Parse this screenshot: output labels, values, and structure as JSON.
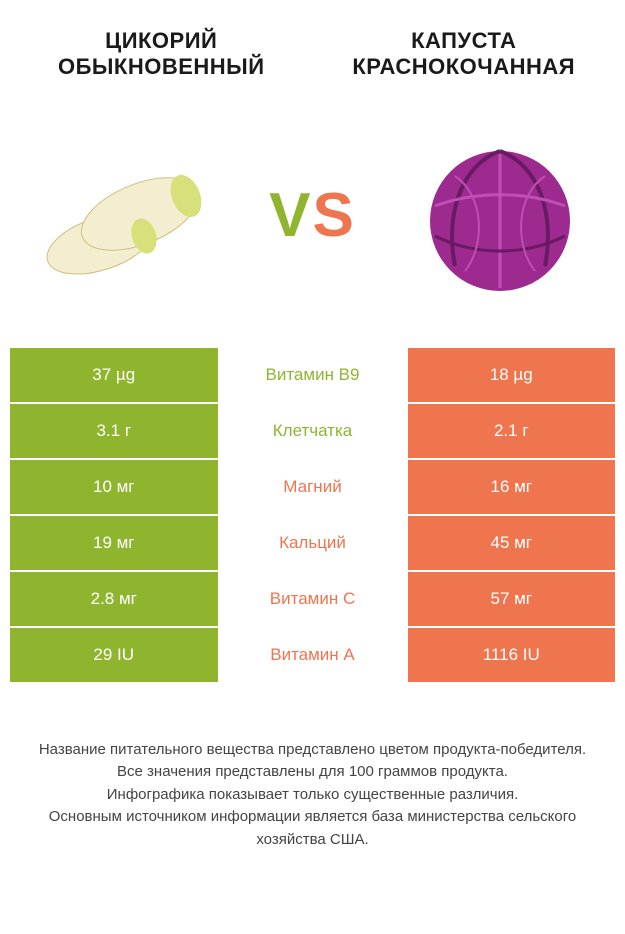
{
  "colors": {
    "left": "#8fb52f",
    "right": "#ee754e",
    "nutrient_left": "#8fb52f",
    "nutrient_right": "#ee754e",
    "text_dark": "#1a1a1a",
    "foot_text": "#444444",
    "white": "#ffffff",
    "endive_body": "#f3eecf",
    "endive_tip": "#d7e07a",
    "endive_stroke": "#cdbf80",
    "cabbage_fill": "#9c2a8f",
    "cabbage_dark": "#6a1a63",
    "cabbage_light": "#c04fb3"
  },
  "typography": {
    "title_size": 22,
    "vs_size": 62,
    "cell_value_size": 17,
    "nutrient_size": 17,
    "foot_size": 15
  },
  "header": {
    "left_title_line1": "ЦИКОРИЙ",
    "left_title_line2": "ОБЫКНОВЕННЫЙ",
    "right_title_line1": "КАПУСТА",
    "right_title_line2": "КРАСНОКОЧАННАЯ",
    "vs_v": "V",
    "vs_s": "S"
  },
  "rows": [
    {
      "left": "37 µg",
      "name": "Витамин B9",
      "right": "18 µg",
      "winner": "left"
    },
    {
      "left": "3.1 г",
      "name": "Клетчатка",
      "right": "2.1 г",
      "winner": "left"
    },
    {
      "left": "10 мг",
      "name": "Магний",
      "right": "16 мг",
      "winner": "right"
    },
    {
      "left": "19 мг",
      "name": "Кальций",
      "right": "45 мг",
      "winner": "right"
    },
    {
      "left": "2.8 мг",
      "name": "Витамин C",
      "right": "57 мг",
      "winner": "right"
    },
    {
      "left": "29 IU",
      "name": "Витамин A",
      "right": "1116 IU",
      "winner": "right"
    }
  ],
  "footnotes": [
    "Название питательного вещества представлено цветом продукта-победителя.",
    "Все значения представлены для 100 граммов продукта.",
    "Инфографика показывает только существенные различия.",
    "Основным источником информации является база министерства сельского хозяйства США."
  ]
}
